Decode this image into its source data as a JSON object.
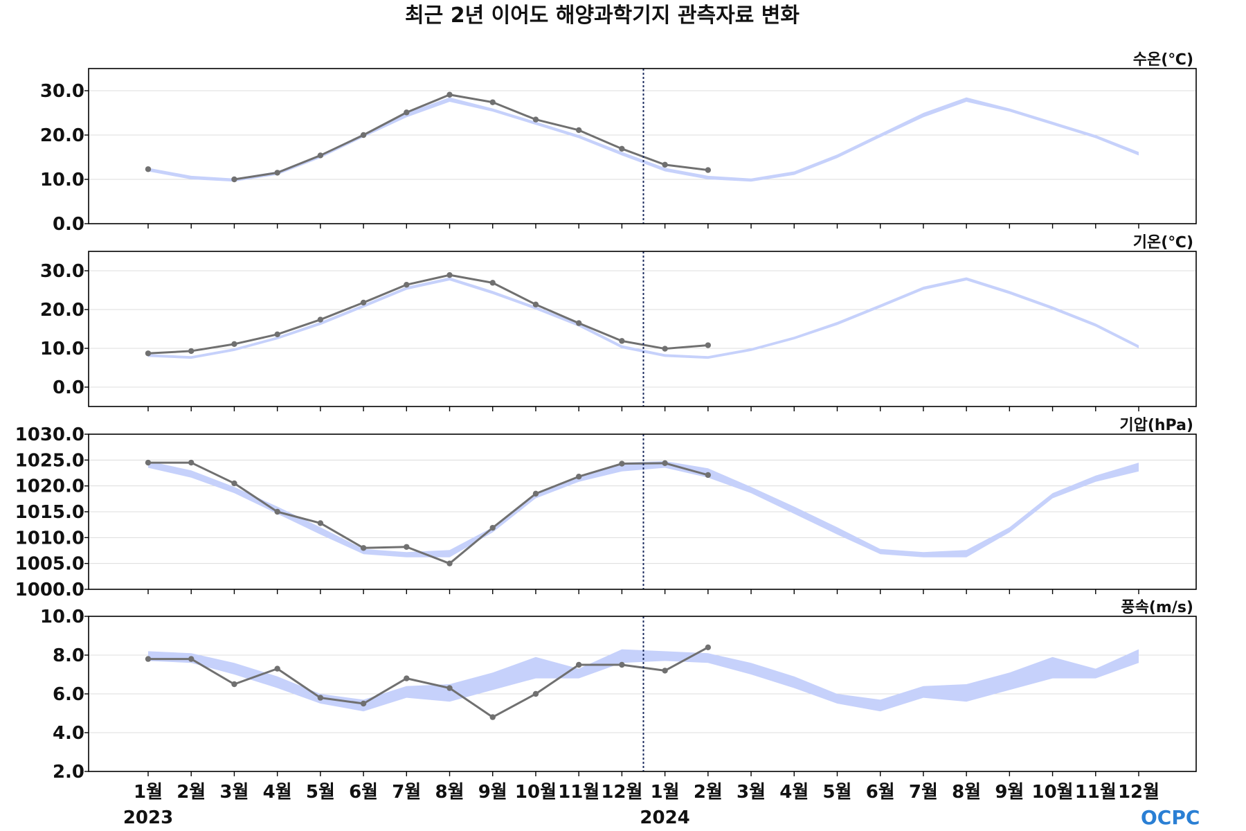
{
  "title": "최근 2년 이어도 해양과학기지 관측자료 변화",
  "logo": {
    "text": "OCPC",
    "color": "#2a7fd4"
  },
  "colors": {
    "observed": "#707070",
    "climatology_band": "#c6d1fb",
    "divider": "#1a2a5e"
  },
  "chart_data": [
    {
      "type": "line",
      "unit_label": "수온(℃)",
      "ylim": [
        0,
        35
      ],
      "yticks": [
        0,
        10,
        20,
        30
      ],
      "ytick_labels": [
        "0.0",
        "10.0",
        "20.0",
        "30.0"
      ],
      "x_labels": [
        "1월",
        "2월",
        "3월",
        "4월",
        "5월",
        "6월",
        "7월",
        "8월",
        "9월",
        "10월",
        "11월",
        "12월",
        "1월",
        "2월",
        "3월",
        "4월",
        "5월",
        "6월",
        "7월",
        "8월",
        "9월",
        "10월",
        "11월",
        "12월"
      ],
      "years": [
        {
          "label": "2023",
          "index": 0
        },
        {
          "label": "2024",
          "index": 12
        }
      ],
      "divider_after_index": 11.5,
      "grid": true,
      "band_low": [
        11.8,
        10.0,
        9.5,
        11.0,
        14.8,
        19.5,
        24.0,
        27.5,
        25.3,
        22.3,
        19.3,
        15.4,
        11.8,
        10.0,
        9.5,
        11.0,
        14.8,
        19.5,
        24.0,
        27.5,
        25.3,
        22.3,
        19.3,
        15.4
      ],
      "band_high": [
        12.6,
        10.8,
        10.2,
        11.8,
        15.6,
        20.3,
        25.0,
        28.5,
        26.0,
        23.0,
        20.0,
        16.2,
        12.6,
        10.8,
        10.2,
        11.8,
        15.6,
        20.3,
        25.0,
        28.5,
        26.0,
        23.0,
        20.0,
        16.2
      ],
      "observed": [
        12.3,
        null,
        10.0,
        11.5,
        15.4,
        20.0,
        25.1,
        29.1,
        27.4,
        23.5,
        21.1,
        16.9,
        13.3,
        12.1,
        null,
        null,
        null,
        null,
        null,
        null,
        null,
        null,
        null,
        null
      ]
    },
    {
      "type": "line",
      "unit_label": "기온(℃)",
      "ylim": [
        -5,
        35
      ],
      "yticks": [
        0,
        10,
        20,
        30
      ],
      "ytick_labels": [
        "0.0",
        "10.0",
        "20.0",
        "30.0"
      ],
      "x_labels": [
        "1월",
        "2월",
        "3월",
        "4월",
        "5월",
        "6월",
        "7월",
        "8월",
        "9월",
        "10월",
        "11월",
        "12월",
        "1월",
        "2월",
        "3월",
        "4월",
        "5월",
        "6월",
        "7월",
        "8월",
        "9월",
        "10월",
        "11월",
        "12월"
      ],
      "years": [
        {
          "label": "2023",
          "index": 0
        },
        {
          "label": "2024",
          "index": 12
        }
      ],
      "divider_after_index": 11.5,
      "grid": true,
      "band_low": [
        7.8,
        7.3,
        9.3,
        12.3,
        16.0,
        20.5,
        25.1,
        27.5,
        24.0,
        20.0,
        15.6,
        10.0,
        7.8,
        7.3,
        9.3,
        12.3,
        16.0,
        20.5,
        25.1,
        27.5,
        24.0,
        20.0,
        15.6,
        10.0
      ],
      "band_high": [
        8.5,
        8.0,
        10.0,
        13.0,
        16.8,
        21.3,
        25.9,
        28.3,
        24.8,
        20.8,
        16.4,
        10.8,
        8.5,
        8.0,
        10.0,
        13.0,
        16.8,
        21.3,
        25.9,
        28.3,
        24.8,
        20.8,
        16.4,
        10.8
      ],
      "observed": [
        8.7,
        9.3,
        11.1,
        13.6,
        17.4,
        21.8,
        26.4,
        28.9,
        26.9,
        21.3,
        16.5,
        11.9,
        9.9,
        10.8,
        null,
        null,
        null,
        null,
        null,
        null,
        null,
        null,
        null,
        null
      ]
    },
    {
      "type": "line",
      "unit_label": "기압(hPa)",
      "ylim": [
        1000,
        1030
      ],
      "yticks": [
        1000,
        1005,
        1010,
        1015,
        1020,
        1025,
        1030
      ],
      "ytick_labels": [
        "1000.0",
        "1005.0",
        "1010.0",
        "1015.0",
        "1020.0",
        "1025.0",
        "1030.0"
      ],
      "x_labels": [
        "1월",
        "2월",
        "3월",
        "4월",
        "5월",
        "6월",
        "7월",
        "8월",
        "9월",
        "10월",
        "11월",
        "12월",
        "1월",
        "2월",
        "3월",
        "4월",
        "5월",
        "6월",
        "7월",
        "8월",
        "9월",
        "10월",
        "11월",
        "12월"
      ],
      "years": [
        {
          "label": "2023",
          "index": 0
        },
        {
          "label": "2024",
          "index": 12
        }
      ],
      "divider_after_index": 11.5,
      "grid": true,
      "band_low": [
        1023.5,
        1021.6,
        1018.6,
        1014.6,
        1010.6,
        1006.8,
        1006.2,
        1006.2,
        1011.0,
        1017.6,
        1020.8,
        1022.8,
        1023.5,
        1021.6,
        1018.6,
        1014.6,
        1010.6,
        1006.8,
        1006.2,
        1006.2,
        1011.0,
        1017.6,
        1020.8,
        1022.8
      ],
      "band_high": [
        1024.8,
        1023.0,
        1019.8,
        1016.0,
        1012.0,
        1007.8,
        1007.2,
        1007.6,
        1012.0,
        1018.6,
        1022.0,
        1024.5,
        1024.8,
        1023.4,
        1019.8,
        1016.0,
        1012.0,
        1007.8,
        1007.2,
        1007.6,
        1012.0,
        1018.6,
        1022.0,
        1024.5
      ],
      "observed": [
        1024.5,
        1024.5,
        1020.5,
        1015.0,
        1012.8,
        1008.0,
        1008.2,
        1005.0,
        1011.9,
        1018.5,
        1021.8,
        1024.3,
        1024.4,
        1022.1,
        null,
        null,
        null,
        null,
        null,
        null,
        null,
        null,
        null,
        null
      ]
    },
    {
      "type": "line",
      "unit_label": "풍속(m/s)",
      "ylim": [
        2,
        10
      ],
      "yticks": [
        2,
        4,
        6,
        8,
        10
      ],
      "ytick_labels": [
        "2.0",
        "4.0",
        "6.0",
        "8.0",
        "10.0"
      ],
      "x_labels": [
        "1월",
        "2월",
        "3월",
        "4월",
        "5월",
        "6월",
        "7월",
        "8월",
        "9월",
        "10월",
        "11월",
        "12월",
        "1월",
        "2월",
        "3월",
        "4월",
        "5월",
        "6월",
        "7월",
        "8월",
        "9월",
        "10월",
        "11월",
        "12월"
      ],
      "years": [
        {
          "label": "2023",
          "index": 0
        },
        {
          "label": "2024",
          "index": 12
        }
      ],
      "divider_after_index": 11.5,
      "grid": true,
      "band_low": [
        7.7,
        7.6,
        7.0,
        6.3,
        5.5,
        5.1,
        5.8,
        5.6,
        6.2,
        6.8,
        6.8,
        7.6,
        7.7,
        7.6,
        7.0,
        6.3,
        5.5,
        5.1,
        5.8,
        5.6,
        6.2,
        6.8,
        6.8,
        7.6
      ],
      "band_high": [
        8.2,
        8.1,
        7.6,
        6.9,
        6.0,
        5.7,
        6.4,
        6.5,
        7.1,
        7.9,
        7.3,
        8.3,
        8.2,
        8.1,
        7.6,
        6.9,
        6.0,
        5.7,
        6.4,
        6.5,
        7.1,
        7.9,
        7.3,
        8.3
      ],
      "observed": [
        7.8,
        7.8,
        6.5,
        7.3,
        5.8,
        5.5,
        6.8,
        6.3,
        4.8,
        6.0,
        7.5,
        7.5,
        7.2,
        8.4,
        null,
        null,
        null,
        null,
        null,
        null,
        null,
        null,
        null,
        null
      ]
    }
  ]
}
